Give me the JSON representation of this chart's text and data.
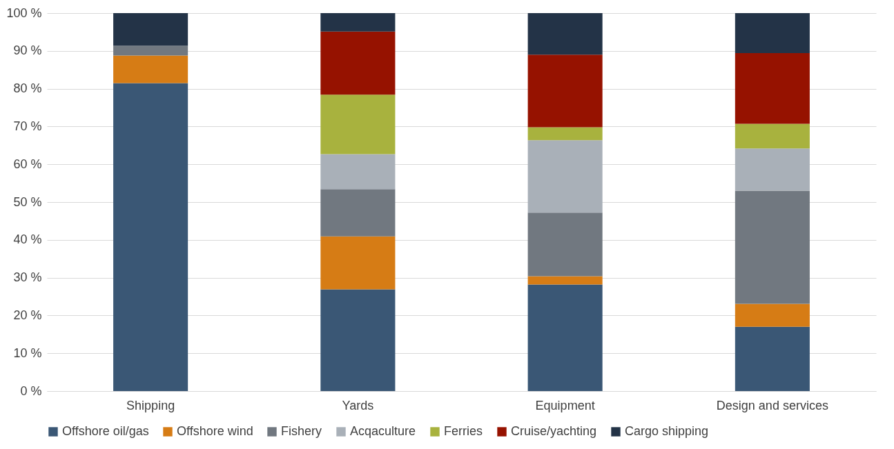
{
  "chart_data": {
    "type": "bar",
    "stacked": true,
    "categories": [
      "Shipping",
      "Yards",
      "Equipment",
      "Design and services"
    ],
    "series": [
      {
        "name": "Offshore oil/gas",
        "color": "#3a5775",
        "values": [
          81.5,
          26.9,
          28.2,
          17.0
        ]
      },
      {
        "name": "Offshore wind",
        "color": "#d67c15",
        "values": [
          7.3,
          14.0,
          2.2,
          6.1
        ]
      },
      {
        "name": "Fishery",
        "color": "#717880",
        "values": [
          2.6,
          12.5,
          16.8,
          29.9
        ]
      },
      {
        "name": "Acqaculture",
        "color": "#a9b0b8",
        "values": [
          0,
          9.3,
          19.2,
          11.2
        ]
      },
      {
        "name": "Ferries",
        "color": "#a8b23e",
        "values": [
          0,
          15.7,
          3.4,
          6.5
        ]
      },
      {
        "name": "Cruise/yachting",
        "color": "#961200",
        "values": [
          0,
          16.7,
          19.2,
          18.7
        ]
      },
      {
        "name": "Cargo shipping",
        "color": "#233347",
        "values": [
          8.6,
          4.9,
          11.0,
          10.6
        ]
      }
    ],
    "ylim": [
      0,
      100
    ],
    "yticks": [
      {
        "value": 0,
        "label": "0 %"
      },
      {
        "value": 10,
        "label": "10 %"
      },
      {
        "value": 20,
        "label": "20 %"
      },
      {
        "value": 30,
        "label": "30 %"
      },
      {
        "value": 40,
        "label": "40 %"
      },
      {
        "value": 50,
        "label": "50 %"
      },
      {
        "value": 60,
        "label": "60 %"
      },
      {
        "value": 70,
        "label": "70 %"
      },
      {
        "value": 80,
        "label": "80 %"
      },
      {
        "value": 90,
        "label": "90 %"
      },
      {
        "value": 100,
        "label": "100 %"
      }
    ],
    "grid": "y",
    "legend": "bottom"
  }
}
